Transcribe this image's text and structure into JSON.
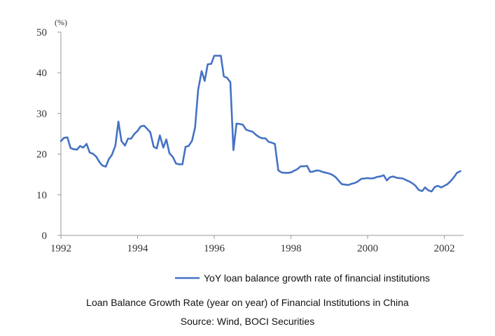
{
  "chart_data": {
    "type": "line",
    "unit_label": "(%)",
    "xlim": [
      1992,
      2002.5
    ],
    "ylim": [
      0,
      50
    ],
    "x_ticks": [
      1992,
      1994,
      1996,
      1998,
      2000,
      2002
    ],
    "y_ticks": [
      0,
      10,
      20,
      30,
      40,
      50
    ],
    "grid": false,
    "legend_position": "bottom-right",
    "colors": {
      "series": "#4472c4",
      "axis": "#999999"
    },
    "series": [
      {
        "name": "YoY loan balance growth rate of financial institutions",
        "x": [
          1992.0,
          1992.08,
          1992.17,
          1992.25,
          1992.33,
          1992.42,
          1992.5,
          1992.58,
          1992.67,
          1992.75,
          1992.83,
          1992.92,
          1993.0,
          1993.08,
          1993.17,
          1993.25,
          1993.33,
          1993.42,
          1993.5,
          1993.58,
          1993.67,
          1993.75,
          1993.83,
          1993.92,
          1994.0,
          1994.08,
          1994.17,
          1994.25,
          1994.33,
          1994.42,
          1994.5,
          1994.58,
          1994.67,
          1994.75,
          1994.83,
          1994.92,
          1995.0,
          1995.08,
          1995.17,
          1995.25,
          1995.33,
          1995.42,
          1995.5,
          1995.58,
          1995.67,
          1995.75,
          1995.83,
          1995.92,
          1996.0,
          1996.08,
          1996.17,
          1996.25,
          1996.33,
          1996.42,
          1996.5,
          1996.58,
          1996.67,
          1996.75,
          1996.83,
          1996.92,
          1997.0,
          1997.08,
          1997.17,
          1997.25,
          1997.33,
          1997.42,
          1997.5,
          1997.58,
          1997.67,
          1997.75,
          1997.83,
          1997.92,
          1998.0,
          1998.08,
          1998.17,
          1998.25,
          1998.33,
          1998.42,
          1998.5,
          1998.58,
          1998.67,
          1998.75,
          1998.83,
          1998.92,
          1999.0,
          1999.08,
          1999.17,
          1999.25,
          1999.33,
          1999.42,
          1999.5,
          1999.58,
          1999.67,
          1999.75,
          1999.83,
          1999.92,
          2000.0,
          2000.08,
          2000.17,
          2000.25,
          2000.33,
          2000.42,
          2000.5,
          2000.58,
          2000.67,
          2000.75,
          2000.83,
          2000.92,
          2001.0,
          2001.08,
          2001.17,
          2001.25,
          2001.33,
          2001.42,
          2001.5,
          2001.58,
          2001.67,
          2001.75,
          2001.83,
          2001.92,
          2002.0,
          2002.08,
          2002.17,
          2002.25,
          2002.33,
          2002.42
        ],
        "values": [
          23.2,
          24.0,
          24.1,
          21.5,
          21.2,
          21.1,
          22.0,
          21.6,
          22.5,
          20.4,
          20.1,
          19.4,
          18.1,
          17.2,
          16.9,
          18.8,
          19.8,
          22.1,
          28.0,
          23.2,
          22.1,
          23.8,
          23.8,
          25.0,
          25.7,
          26.8,
          27.0,
          26.2,
          25.4,
          21.8,
          21.4,
          24.6,
          21.6,
          23.6,
          20.2,
          19.3,
          17.7,
          17.5,
          17.5,
          21.8,
          22.0,
          23.3,
          26.6,
          35.8,
          40.4,
          38.0,
          42.1,
          42.2,
          44.2,
          44.2,
          44.2,
          39.1,
          38.8,
          37.7,
          21.0,
          27.5,
          27.4,
          27.2,
          26.0,
          25.7,
          25.5,
          24.8,
          24.2,
          23.9,
          23.9,
          23.0,
          22.8,
          22.5,
          16.0,
          15.5,
          15.4,
          15.4,
          15.5,
          15.9,
          16.3,
          17.0,
          17.0,
          17.1,
          15.6,
          15.7,
          16.0,
          15.9,
          15.6,
          15.4,
          15.2,
          14.9,
          14.3,
          13.4,
          12.6,
          12.5,
          12.4,
          12.7,
          12.9,
          13.3,
          13.9,
          14.0,
          14.1,
          14.0,
          14.1,
          14.4,
          14.5,
          14.8,
          13.5,
          14.3,
          14.5,
          14.2,
          14.1,
          14.0,
          13.6,
          13.3,
          12.8,
          12.2,
          11.2,
          10.9,
          11.8,
          11.1,
          10.8,
          11.9,
          12.2,
          11.8,
          12.2,
          12.6,
          13.4,
          14.3,
          15.4,
          15.8
        ]
      }
    ]
  },
  "captions": {
    "title": "Loan Balance Growth Rate (year on year) of Financial Institutions in China",
    "source": "Source: Wind, BOCI Securities"
  }
}
